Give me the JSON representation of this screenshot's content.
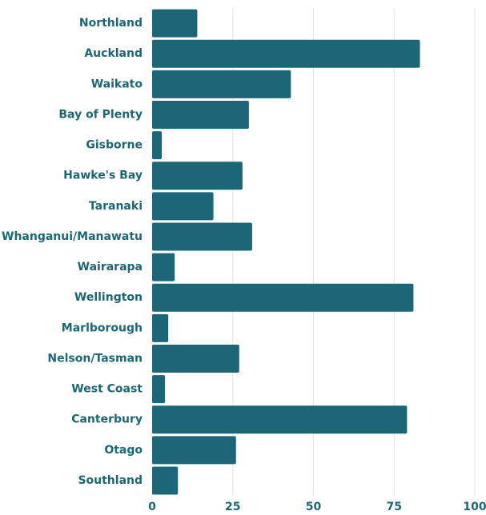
{
  "chart_data": {
    "type": "hbar",
    "categories": [
      "Northland",
      "Auckland",
      "Waikato",
      "Bay of Plenty",
      "Gisborne",
      "Hawke's Bay",
      "Taranaki",
      "Whanganui/Manawatu",
      "Wairarapa",
      "Wellington",
      "Marlborough",
      "Nelson/Tasman",
      "West Coast",
      "Canterbury",
      "Otago",
      "Southland"
    ],
    "values": [
      14,
      83,
      43,
      30,
      3,
      28,
      19,
      31,
      7,
      81,
      5,
      27,
      4,
      79,
      26,
      8
    ],
    "color": "#1b6677",
    "xlim": [
      0,
      100
    ],
    "xticks": [
      0,
      25,
      50,
      75,
      100
    ],
    "grid": true
  }
}
